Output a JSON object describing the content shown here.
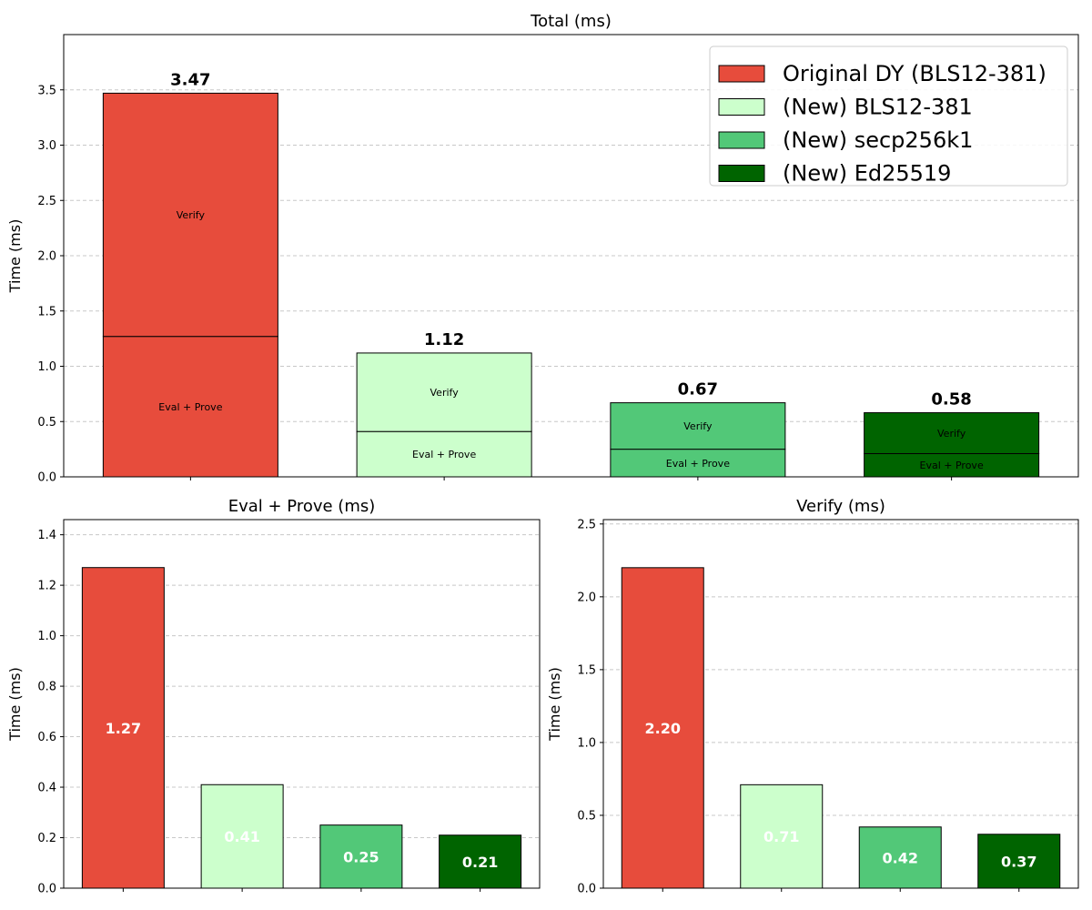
{
  "chart_data": [
    {
      "type": "bar",
      "title": "Total (ms)",
      "ylabel": "Time (ms)",
      "xlabel": "",
      "ylim": [
        0,
        4.0
      ],
      "yticks": [
        "0.0",
        "0.5",
        "1.0",
        "1.5",
        "2.0",
        "2.5",
        "3.0",
        "3.5"
      ],
      "grid": true,
      "stacked": true,
      "categories": [
        "Original DY (BLS12-381)",
        "(New) BLS12-381",
        "(New) secp256k1",
        "(New) Ed25519"
      ],
      "colors": [
        "#e74c3c",
        "#ccffcc",
        "#52c878",
        "#006400"
      ],
      "segment_labels": [
        "Eval + Prove",
        "Verify"
      ],
      "stacks": [
        {
          "eval_prove": 1.27,
          "verify": 2.2,
          "total": 3.47,
          "total_label": "3.47"
        },
        {
          "eval_prove": 0.41,
          "verify": 0.71,
          "total": 1.12,
          "total_label": "1.12"
        },
        {
          "eval_prove": 0.25,
          "verify": 0.42,
          "total": 0.67,
          "total_label": "0.67"
        },
        {
          "eval_prove": 0.21,
          "verify": 0.37,
          "total": 0.58,
          "total_label": "0.58"
        }
      ],
      "legend": {
        "placement": "top-right",
        "entries": [
          "Original DY (BLS12-381)",
          "(New) BLS12-381",
          "(New) secp256k1",
          "(New) Ed25519"
        ]
      }
    },
    {
      "type": "bar",
      "title": "Eval + Prove (ms)",
      "ylabel": "Time (ms)",
      "xlabel": "",
      "ylim": [
        0,
        1.46
      ],
      "yticks": [
        "0.0",
        "0.2",
        "0.4",
        "0.6",
        "0.8",
        "1.0",
        "1.2",
        "1.4"
      ],
      "grid": true,
      "colors": [
        "#e74c3c",
        "#ccffcc",
        "#52c878",
        "#006400"
      ],
      "values": [
        1.27,
        0.41,
        0.25,
        0.21
      ],
      "value_labels": [
        "1.27",
        "0.41",
        "0.25",
        "0.21"
      ]
    },
    {
      "type": "bar",
      "title": "Verify (ms)",
      "ylabel": "Time (ms)",
      "xlabel": "",
      "ylim": [
        0,
        2.53
      ],
      "yticks": [
        "0.0",
        "0.5",
        "1.0",
        "1.5",
        "2.0",
        "2.5"
      ],
      "grid": true,
      "colors": [
        "#e74c3c",
        "#ccffcc",
        "#52c878",
        "#006400"
      ],
      "values": [
        2.2,
        0.71,
        0.42,
        0.37
      ],
      "value_labels": [
        "2.20",
        "0.71",
        "0.42",
        "0.37"
      ]
    }
  ]
}
